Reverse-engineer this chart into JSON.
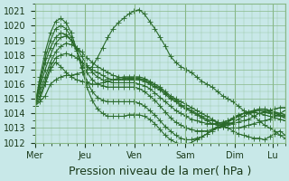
{
  "bg_color": "#c8e8e8",
  "grid_color": "#88b888",
  "line_color": "#2a6a2a",
  "marker": "+",
  "markersize": 4,
  "linewidth": 0.8,
  "ylim": [
    1012,
    1021.5
  ],
  "yticks": [
    1012,
    1013,
    1014,
    1015,
    1016,
    1017,
    1018,
    1019,
    1020,
    1021
  ],
  "xlabel": "Pression niveau de la mer( hPa )",
  "xlabel_fontsize": 9,
  "tick_fontsize": 7,
  "day_labels": [
    "Mer",
    "Jeu",
    "Ven",
    "Sam",
    "Dim",
    "Lu"
  ],
  "day_positions": [
    0,
    48,
    96,
    144,
    192,
    228
  ],
  "xlim": [
    0,
    240
  ],
  "series": [
    [
      1014.5,
      1014.8,
      1015.2,
      1016.0,
      1016.3,
      1016.5,
      1016.6,
      1016.6,
      1016.7,
      1016.8,
      1017.0,
      1017.2,
      1017.8,
      1018.5,
      1019.2,
      1019.8,
      1020.2,
      1020.5,
      1020.8,
      1021.0,
      1021.1,
      1020.8,
      1020.3,
      1019.8,
      1019.2,
      1018.6,
      1017.9,
      1017.5,
      1017.2,
      1017.0,
      1016.8,
      1016.5,
      1016.2,
      1016.0,
      1015.8,
      1015.5,
      1015.2,
      1015.0,
      1014.8,
      1014.5,
      1014.2,
      1014.0,
      1013.8,
      1013.5,
      1013.2,
      1013.0,
      1012.8,
      1012.5,
      1012.3
    ],
    [
      1014.5,
      1015.0,
      1016.0,
      1017.0,
      1017.5,
      1017.2,
      1016.8,
      1016.5,
      1016.3,
      1016.2,
      1016.1,
      1016.0,
      1016.0,
      1016.1,
      1016.2,
      1016.3,
      1016.4,
      1016.5,
      1016.5,
      1016.5,
      1016.5,
      1016.4,
      1016.2,
      1016.0,
      1015.8,
      1015.5,
      1015.2,
      1015.0,
      1014.8,
      1014.6,
      1014.4,
      1014.2,
      1014.0,
      1013.8,
      1013.6,
      1013.4,
      1013.2,
      1013.0,
      1012.8,
      1012.6,
      1012.5,
      1012.4,
      1012.3,
      1012.3,
      1012.2,
      1012.4,
      1012.6,
      1012.8,
      1012.5
    ],
    [
      1014.5,
      1015.2,
      1016.2,
      1017.2,
      1017.8,
      1018.0,
      1018.1,
      1018.0,
      1017.8,
      1017.5,
      1017.2,
      1017.0,
      1016.8,
      1016.6,
      1016.4,
      1016.3,
      1016.3,
      1016.3,
      1016.3,
      1016.3,
      1016.3,
      1016.2,
      1016.0,
      1015.8,
      1015.6,
      1015.3,
      1015.0,
      1014.8,
      1014.5,
      1014.3,
      1014.1,
      1013.9,
      1013.7,
      1013.5,
      1013.3,
      1013.2,
      1013.1,
      1013.0,
      1013.0,
      1013.0,
      1013.1,
      1013.2,
      1013.3,
      1013.4,
      1013.5,
      1013.6,
      1013.8,
      1014.0,
      1014.2
    ],
    [
      1014.5,
      1015.5,
      1016.5,
      1017.5,
      1018.2,
      1018.6,
      1018.8,
      1018.7,
      1018.5,
      1018.2,
      1017.8,
      1017.5,
      1017.2,
      1017.0,
      1016.8,
      1016.6,
      1016.5,
      1016.4,
      1016.4,
      1016.4,
      1016.4,
      1016.3,
      1016.1,
      1015.9,
      1015.7,
      1015.4,
      1015.1,
      1014.9,
      1014.6,
      1014.4,
      1014.2,
      1014.0,
      1013.8,
      1013.6,
      1013.5,
      1013.4,
      1013.3,
      1013.3,
      1013.3,
      1013.4,
      1013.5,
      1013.6,
      1013.8,
      1014.0,
      1014.1,
      1014.2,
      1014.3,
      1014.4,
      1014.4
    ],
    [
      1014.5,
      1015.8,
      1017.0,
      1018.0,
      1018.8,
      1019.2,
      1019.3,
      1019.0,
      1018.5,
      1017.9,
      1017.3,
      1016.8,
      1016.5,
      1016.3,
      1016.2,
      1016.1,
      1016.1,
      1016.1,
      1016.1,
      1016.1,
      1016.0,
      1015.9,
      1015.7,
      1015.4,
      1015.1,
      1014.8,
      1014.5,
      1014.2,
      1014.0,
      1013.8,
      1013.6,
      1013.5,
      1013.4,
      1013.3,
      1013.3,
      1013.3,
      1013.4,
      1013.5,
      1013.6,
      1013.8,
      1014.0,
      1014.1,
      1014.2,
      1014.3,
      1014.3,
      1014.2,
      1014.1,
      1014.0,
      1013.9
    ],
    [
      1014.5,
      1016.0,
      1017.5,
      1018.5,
      1019.2,
      1019.5,
      1019.4,
      1019.0,
      1018.3,
      1017.5,
      1016.8,
      1016.3,
      1016.0,
      1015.9,
      1015.8,
      1015.8,
      1015.8,
      1015.8,
      1015.8,
      1015.8,
      1015.7,
      1015.5,
      1015.2,
      1014.9,
      1014.5,
      1014.1,
      1013.7,
      1013.4,
      1013.2,
      1013.0,
      1012.9,
      1012.8,
      1012.8,
      1012.8,
      1012.9,
      1013.0,
      1013.1,
      1013.2,
      1013.4,
      1013.6,
      1013.8,
      1014.0,
      1014.1,
      1014.2,
      1014.2,
      1014.1,
      1014.0,
      1013.9,
      1013.8
    ],
    [
      1014.5,
      1016.2,
      1017.8,
      1019.0,
      1019.8,
      1020.0,
      1019.8,
      1019.2,
      1018.3,
      1017.2,
      1016.2,
      1015.5,
      1015.1,
      1014.9,
      1014.8,
      1014.8,
      1014.8,
      1014.8,
      1014.8,
      1014.8,
      1014.7,
      1014.5,
      1014.2,
      1013.9,
      1013.5,
      1013.1,
      1012.8,
      1012.5,
      1012.3,
      1012.2,
      1012.2,
      1012.3,
      1012.4,
      1012.6,
      1012.8,
      1013.0,
      1013.2,
      1013.4,
      1013.6,
      1013.8,
      1014.0,
      1014.1,
      1014.2,
      1014.2,
      1014.1,
      1014.0,
      1013.9,
      1013.8,
      1013.7
    ],
    [
      1014.5,
      1016.5,
      1018.2,
      1019.5,
      1020.3,
      1020.5,
      1020.2,
      1019.5,
      1018.4,
      1017.1,
      1015.8,
      1014.9,
      1014.3,
      1014.0,
      1013.8,
      1013.8,
      1013.8,
      1013.8,
      1013.9,
      1013.9,
      1013.9,
      1013.8,
      1013.6,
      1013.3,
      1012.9,
      1012.5,
      1012.2,
      1012.0,
      1011.9,
      1011.9,
      1012.0,
      1012.2,
      1012.4,
      1012.6,
      1012.9,
      1013.1,
      1013.3,
      1013.5,
      1013.7,
      1013.9,
      1014.0,
      1014.1,
      1014.1,
      1014.0,
      1013.9,
      1013.8,
      1013.7,
      1013.6,
      1013.5
    ]
  ]
}
